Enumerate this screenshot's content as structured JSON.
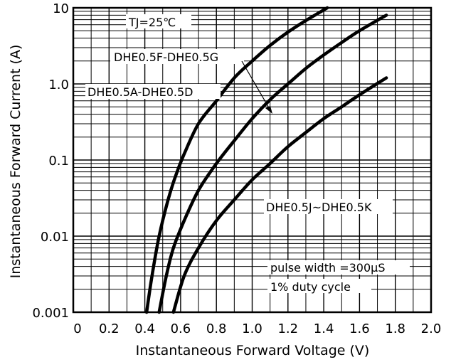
{
  "chart_data": {
    "type": "line",
    "xlabel": "Instantaneous Forward Voltage (V)",
    "ylabel": "Instantaneous Forward Current (A)",
    "xlim": [
      0,
      2.0
    ],
    "ylim": [
      0.001,
      10
    ],
    "yscale": "log",
    "grid": true,
    "x_tick_labels": [
      "0",
      "0.2",
      "0.4",
      "0.6",
      "0.8",
      "1.0",
      "1.2",
      "1.4",
      "1.6",
      "1.8",
      "2.0"
    ],
    "y_tick_labels": [
      "0.001",
      "0.01",
      "0.1",
      "1.0",
      "10"
    ],
    "annotations": {
      "tj": "TJ=25℃",
      "series_ad": "DHE0.5A-DHE0.5D",
      "series_fg": "DHE0.5F-DHE0.5G",
      "series_jk": "DHE0.5J~DHE0.5K",
      "pulse": "pulse width =300µS",
      "duty": "1% duty cycle"
    },
    "series": [
      {
        "points": [
          [
            0.41,
            0.001
          ],
          [
            0.44,
            0.003
          ],
          [
            0.48,
            0.01
          ],
          [
            0.53,
            0.03
          ],
          [
            0.57,
            0.06
          ],
          [
            0.62,
            0.12
          ],
          [
            0.7,
            0.3
          ],
          [
            0.8,
            0.6
          ],
          [
            0.9,
            1.2
          ],
          [
            1.0,
            2.0
          ],
          [
            1.1,
            3.2
          ],
          [
            1.2,
            4.8
          ],
          [
            1.3,
            6.8
          ],
          [
            1.42,
            10
          ]
        ]
      },
      {
        "points": [
          [
            0.48,
            0.001
          ],
          [
            0.52,
            0.003
          ],
          [
            0.56,
            0.007
          ],
          [
            0.62,
            0.016
          ],
          [
            0.7,
            0.04
          ],
          [
            0.8,
            0.09
          ],
          [
            0.9,
            0.18
          ],
          [
            1.0,
            0.35
          ],
          [
            1.1,
            0.62
          ],
          [
            1.2,
            1.0
          ],
          [
            1.3,
            1.6
          ],
          [
            1.4,
            2.4
          ],
          [
            1.5,
            3.5
          ],
          [
            1.6,
            5.0
          ],
          [
            1.75,
            8.0
          ]
        ]
      },
      {
        "points": [
          [
            0.56,
            0.001
          ],
          [
            0.62,
            0.003
          ],
          [
            0.7,
            0.007
          ],
          [
            0.8,
            0.016
          ],
          [
            0.9,
            0.03
          ],
          [
            1.0,
            0.055
          ],
          [
            1.1,
            0.09
          ],
          [
            1.2,
            0.15
          ],
          [
            1.3,
            0.23
          ],
          [
            1.4,
            0.35
          ],
          [
            1.5,
            0.5
          ],
          [
            1.6,
            0.72
          ],
          [
            1.75,
            1.2
          ]
        ]
      }
    ]
  }
}
